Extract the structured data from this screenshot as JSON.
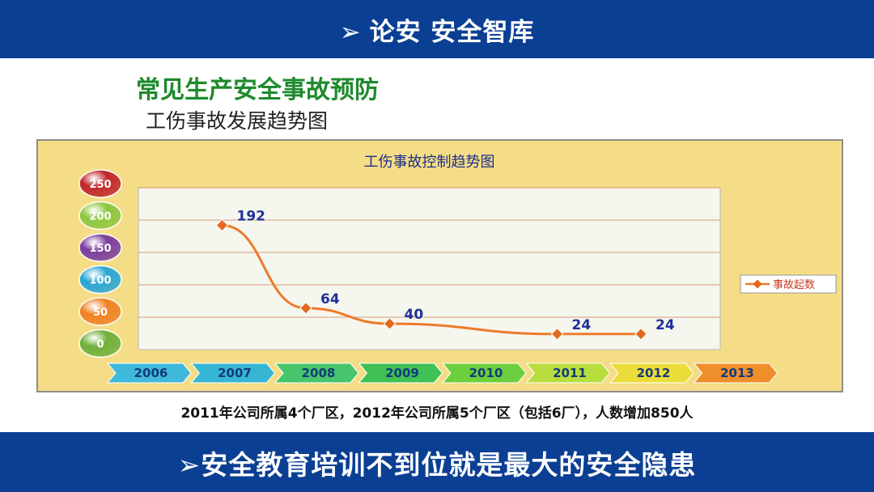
{
  "header": {
    "arrow": "➢",
    "title": "论安 安全智库"
  },
  "heading": "常见生产安全事故预防",
  "subheading": "工伤事故发展趋势图",
  "footnote": "2011年公司所属4个厂区，2012年公司所属5个厂区（包括6厂），人数增加850人",
  "banner": {
    "arrow": "➢",
    "text": "安全教育培训不到位就是最大的安全隐患"
  },
  "chart_data": {
    "type": "line",
    "title": "工伤事故控制趋势图",
    "categories": [
      "2006",
      "2007",
      "2008",
      "2009",
      "2010",
      "2011",
      "2012",
      "2013"
    ],
    "series": [
      {
        "name": "事故起数",
        "points": [
          {
            "x": "2007",
            "y": 192
          },
          {
            "x": "2008",
            "y": 64
          },
          {
            "x": "2009",
            "y": 40
          },
          {
            "x": "2011",
            "y": 24
          },
          {
            "x": "2012",
            "y": 24
          }
        ]
      }
    ],
    "ylim": [
      0,
      250
    ],
    "yticks": [
      250,
      200,
      150,
      100,
      50,
      0
    ],
    "grid": true,
    "legend": "right",
    "colors": {
      "line": "#ee7a2b",
      "marker": "#e4691e",
      "label": "#1f2f9a",
      "plot_bg": "#f5f7ee"
    }
  }
}
